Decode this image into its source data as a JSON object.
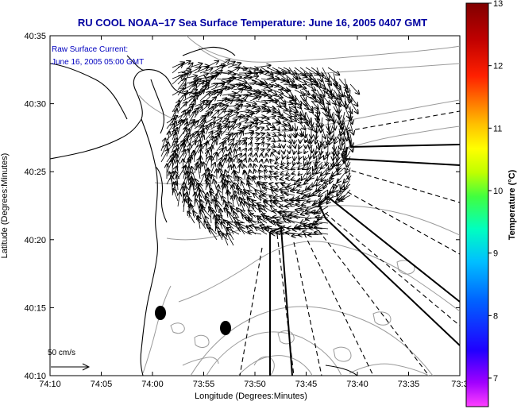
{
  "title": "RU COOL  NOAA–17  Sea Surface Temperature:  June 16, 2005 0407 GMT",
  "current_label": {
    "line1": "Raw Surface Current:",
    "line2": "June 16, 2005 05:00 GMT"
  },
  "scale_label": "50 cm/s",
  "colors": {
    "title": "#0000a0",
    "note": "#0000c0",
    "land": "#ffffff",
    "coast": "#000000",
    "contour": "#9a9a9a",
    "arrows": "#000000"
  },
  "x_axis": {
    "label": "Longitude (Degrees:Minutes)",
    "ticks": [
      "74:10",
      "74:05",
      "74:00",
      "73:55",
      "73:50",
      "73:45",
      "73:40",
      "73:35",
      "73:3"
    ]
  },
  "y_axis": {
    "label": "Latitude (Degrees:Minutes)",
    "ticks": [
      "40:35",
      "40:30",
      "40:25",
      "40:20",
      "40:15",
      "40:10"
    ]
  },
  "colorbar": {
    "label": "Temperature (°C)",
    "ticks": [
      "13",
      "12",
      "11",
      "10",
      "9",
      "8",
      "7"
    ],
    "colors": [
      "#ff40ff",
      "#a000ff",
      "#2000ff",
      "#0060ff",
      "#00c0ff",
      "#00ffc0",
      "#40ff40",
      "#c0ff00",
      "#ffff00",
      "#ffc000",
      "#ff7000",
      "#ff2000",
      "#c00000",
      "#800000"
    ]
  }
}
